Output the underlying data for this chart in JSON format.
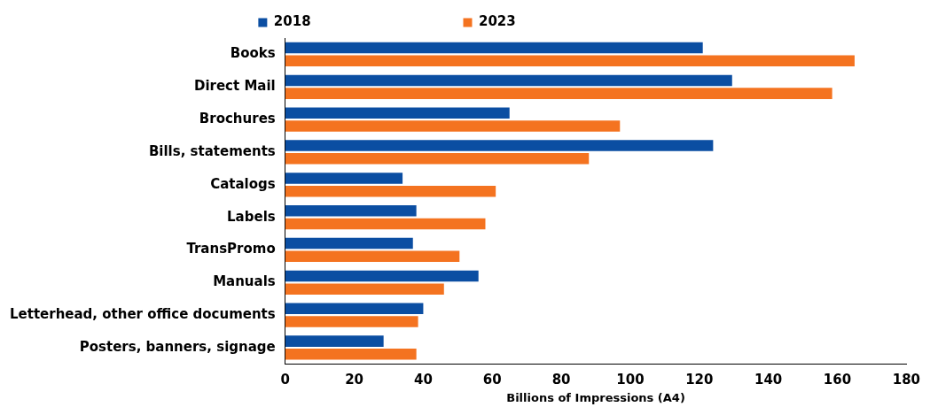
{
  "chart_data": {
    "type": "bar",
    "orientation": "horizontal",
    "xlabel": "Billions of Impressions (A4)",
    "categories": [
      "Books",
      "Direct Mail",
      "Brochures",
      "Bills, statements",
      "Catalogs",
      "Labels",
      "TransPromo",
      "Manuals",
      "Letterhead, other office documents",
      "Posters, banners, signage"
    ],
    "series": [
      {
        "name": "2018",
        "color": "#0b4ea2",
        "values": [
          121,
          129.5,
          65,
          124,
          34,
          38,
          37,
          56,
          40,
          28.5
        ]
      },
      {
        "name": "2023",
        "color": "#f47320",
        "values": [
          165,
          158.5,
          97,
          88,
          61,
          58,
          50.5,
          46,
          38.5,
          38
        ]
      }
    ],
    "xlim": [
      0,
      180
    ],
    "xticks": [
      0,
      20,
      40,
      60,
      80,
      100,
      120,
      140,
      160,
      180
    ],
    "legend": "top"
  }
}
